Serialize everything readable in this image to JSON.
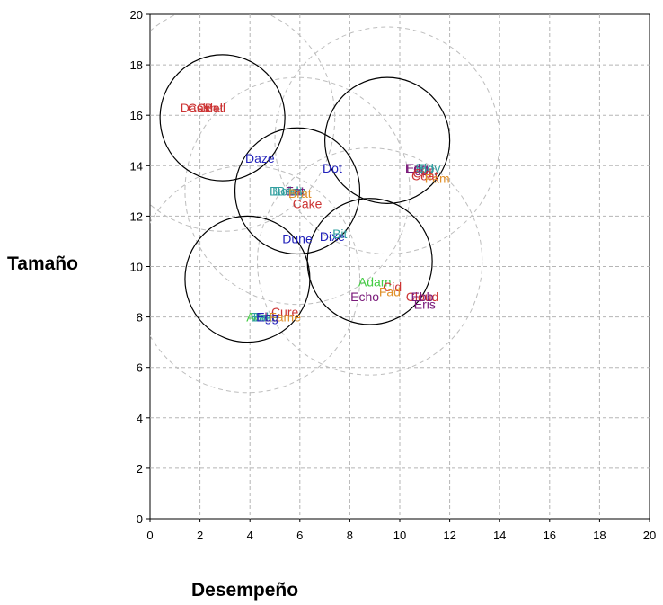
{
  "chart_data": {
    "type": "scatter",
    "xlabel": "Desempeño",
    "ylabel": "Tamaño",
    "xlim": [
      0,
      20
    ],
    "ylim": [
      0,
      20
    ],
    "xticks": [
      0,
      2,
      4,
      6,
      8,
      10,
      12,
      14,
      16,
      18,
      20
    ],
    "yticks": [
      0,
      2,
      4,
      6,
      8,
      10,
      12,
      14,
      16,
      18,
      20
    ],
    "grid": true,
    "points": [
      {
        "label": "Dash",
        "x": 1.8,
        "y": 16.3,
        "color": "#cc3333"
      },
      {
        "label": "Cash",
        "x": 2.1,
        "y": 16.3,
        "color": "#cc3333"
      },
      {
        "label": "Coat",
        "x": 2.4,
        "y": 16.3,
        "color": "#cc3333"
      },
      {
        "label": "Bell",
        "x": 2.6,
        "y": 16.3,
        "color": "#cc3333"
      },
      {
        "label": "Daze",
        "x": 4.4,
        "y": 14.3,
        "color": "#2222bb"
      },
      {
        "label": "Dot",
        "x": 7.3,
        "y": 13.9,
        "color": "#2222bb"
      },
      {
        "label": "Bold",
        "x": 5.4,
        "y": 13.0,
        "color": "#33a0a0"
      },
      {
        "label": "Buddy",
        "x": 5.5,
        "y": 13.0,
        "color": "#33a0a0"
      },
      {
        "label": "Beat",
        "x": 5.6,
        "y": 13.0,
        "color": "#33a0a0"
      },
      {
        "label": "Eat",
        "x": 5.8,
        "y": 13.0,
        "color": "#7a1a7a"
      },
      {
        "label": "Brat",
        "x": 6.0,
        "y": 12.9,
        "color": "#e0902a"
      },
      {
        "label": "Cake",
        "x": 6.3,
        "y": 12.5,
        "color": "#cc3333"
      },
      {
        "label": "Dune",
        "x": 5.9,
        "y": 11.1,
        "color": "#2222bb"
      },
      {
        "label": "Dixe",
        "x": 7.3,
        "y": 11.2,
        "color": "#2222bb"
      },
      {
        "label": "Bit",
        "x": 7.6,
        "y": 11.3,
        "color": "#33a0a0"
      },
      {
        "label": "Egg",
        "x": 10.7,
        "y": 13.9,
        "color": "#7a1a7a"
      },
      {
        "label": "Edge",
        "x": 10.8,
        "y": 13.9,
        "color": "#7a1a7a"
      },
      {
        "label": "Bid",
        "x": 11.0,
        "y": 13.9,
        "color": "#33a0a0"
      },
      {
        "label": "Boy",
        "x": 11.2,
        "y": 13.9,
        "color": "#33a0a0"
      },
      {
        "label": "Cid",
        "x": 10.9,
        "y": 13.7,
        "color": "#cc3333"
      },
      {
        "label": "Coat",
        "x": 11.0,
        "y": 13.6,
        "color": "#cc3333"
      },
      {
        "label": "Fam",
        "x": 11.5,
        "y": 13.5,
        "color": "#e0902a"
      },
      {
        "label": "Adam",
        "x": 9.0,
        "y": 9.4,
        "color": "#44cc44"
      },
      {
        "label": "Cid",
        "x": 9.7,
        "y": 9.2,
        "color": "#cc3333"
      },
      {
        "label": "Fad",
        "x": 9.6,
        "y": 9.0,
        "color": "#e0902a"
      },
      {
        "label": "Echo",
        "x": 8.6,
        "y": 8.8,
        "color": "#7a1a7a"
      },
      {
        "label": "Cloud",
        "x": 10.9,
        "y": 8.8,
        "color": "#cc3333"
      },
      {
        "label": "Ebb",
        "x": 10.9,
        "y": 8.8,
        "color": "#7a1a7a"
      },
      {
        "label": "Eris",
        "x": 11.0,
        "y": 8.5,
        "color": "#7a1a7a"
      },
      {
        "label": "Cure",
        "x": 5.4,
        "y": 8.2,
        "color": "#cc3333"
      },
      {
        "label": "Acme",
        "x": 4.5,
        "y": 8.0,
        "color": "#44cc44"
      },
      {
        "label": "Bat",
        "x": 4.5,
        "y": 8.0,
        "color": "#33a0a0"
      },
      {
        "label": "Bake",
        "x": 4.6,
        "y": 8.0,
        "color": "#33a0a0"
      },
      {
        "label": "Ebb",
        "x": 4.7,
        "y": 8.0,
        "color": "#7a1a7a"
      },
      {
        "label": "Egg",
        "x": 4.7,
        "y": 8.0,
        "color": "#2222bb"
      },
      {
        "label": "Fame",
        "x": 5.4,
        "y": 8.0,
        "color": "#e0902a"
      }
    ],
    "circles_solid": [
      {
        "cx": 2.9,
        "cy": 15.9,
        "r": 2.5
      },
      {
        "cx": 5.9,
        "cy": 13.0,
        "r": 2.5
      },
      {
        "cx": 9.5,
        "cy": 15.0,
        "r": 2.5
      },
      {
        "cx": 3.9,
        "cy": 9.5,
        "r": 2.5
      },
      {
        "cx": 8.8,
        "cy": 10.2,
        "r": 2.5
      }
    ],
    "circles_dashed": [
      {
        "cx": 2.9,
        "cy": 15.9,
        "r": 4.5
      },
      {
        "cx": 5.9,
        "cy": 13.0,
        "r": 4.5
      },
      {
        "cx": 9.5,
        "cy": 15.0,
        "r": 4.5
      },
      {
        "cx": 3.9,
        "cy": 9.5,
        "r": 4.5
      },
      {
        "cx": 8.8,
        "cy": 10.2,
        "r": 4.5
      }
    ]
  }
}
